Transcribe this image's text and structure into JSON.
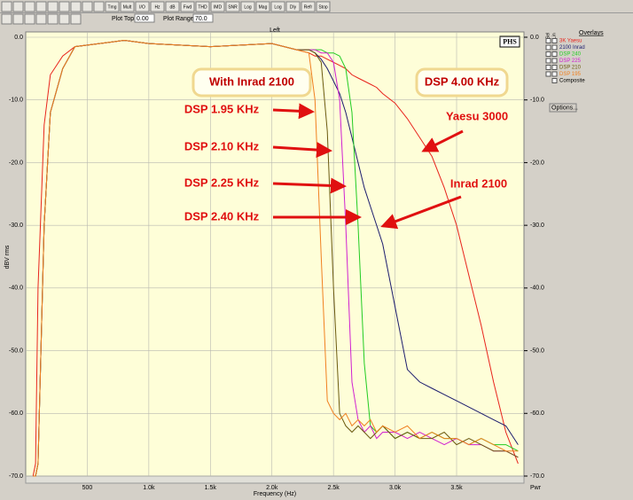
{
  "ui": {
    "toolbar": [
      "Tmg",
      "Mult",
      "I/O",
      "Hz",
      "dB",
      "Fwd",
      "THD",
      "IMD",
      "SNR",
      "Log",
      "Mag",
      "Log",
      "Dly",
      "Refr",
      "Stop"
    ],
    "plot_top_label": "Plot Top:",
    "plot_top_value": "0.00",
    "plot_range_label": "Plot Range:",
    "plot_range_value": "70.0",
    "logo": "PHS",
    "right_corner": "Pwr",
    "overlays_title": "Overlays",
    "overlays_header": [
      "Sel",
      "Lin"
    ],
    "composite": "Composite",
    "options": "Options..."
  },
  "chart_data": {
    "type": "line",
    "title": "Left",
    "x_label": "Frequency (Hz)",
    "y_label": "dBV rms",
    "x": [
      60,
      80,
      100,
      150,
      200,
      300,
      400,
      600,
      800,
      1000,
      1500,
      2000,
      2200,
      2300,
      2350,
      2400,
      2450,
      2500,
      2550,
      2600,
      2650,
      2700,
      2750,
      2800,
      2850,
      2900,
      3000,
      3100,
      3200,
      3300,
      3400,
      3500,
      3600,
      3700,
      3800,
      3900,
      4000
    ],
    "xlim": [
      0,
      4040
    ],
    "xticks": [
      500,
      {
        "value": 1000,
        "label": "1.0k"
      },
      {
        "value": 1500,
        "label": "1.5k"
      },
      {
        "value": 2000,
        "label": "2.0k"
      },
      {
        "value": 2500,
        "label": "2.5k"
      },
      {
        "value": 3000,
        "label": "3.0k"
      },
      {
        "value": 3500,
        "label": "3.5k"
      }
    ],
    "ylim": [
      -70,
      0
    ],
    "yticks": [
      {
        "value": 0,
        "label": "0.0"
      },
      {
        "value": -10,
        "label": "-10.0"
      },
      {
        "value": -20,
        "label": "-20.0"
      },
      {
        "value": -30,
        "label": "-30.0"
      },
      {
        "value": -40,
        "label": "-40.0"
      },
      {
        "value": -50,
        "label": "-50.0"
      },
      {
        "value": -60,
        "label": "-60.0"
      },
      {
        "value": -70,
        "label": "-70.0"
      }
    ],
    "grid": true,
    "series": [
      {
        "name": "3K Yaesu",
        "color": "#e8241c",
        "values": [
          -70,
          -68,
          -40,
          -14,
          -6,
          -3,
          -1.5,
          -1,
          -0.5,
          -1,
          -1.5,
          -1,
          -2,
          -2.5,
          -3,
          -3,
          -3.5,
          -4,
          -4.5,
          -5,
          -6,
          -6.5,
          -7,
          -7.5,
          -8,
          -9,
          -10.5,
          -13,
          -16,
          -19,
          -24,
          -30,
          -38,
          -46,
          -55,
          -63,
          -68
        ]
      },
      {
        "name": "2100 Inrad",
        "color": "#1c1c6e",
        "values": [
          -70,
          -70,
          -68,
          -30,
          -12,
          -5,
          -1.5,
          -1,
          -0.5,
          -1,
          -1.5,
          -1,
          -2,
          -2,
          -2.5,
          -3.5,
          -5,
          -7,
          -9,
          -12,
          -16,
          -20,
          -24,
          -27,
          -30,
          -33,
          -43,
          -53,
          -55,
          -56,
          -57,
          -58,
          -59,
          -60,
          -61,
          -62,
          -65
        ]
      },
      {
        "name": "DSP 240",
        "color": "#22cc22",
        "values": [
          -70,
          -70,
          -68,
          -30,
          -12,
          -5,
          -1.5,
          -1,
          -0.5,
          -1,
          -1.5,
          -1,
          -2,
          -2,
          -2,
          -2,
          -2.5,
          -2.5,
          -3,
          -5,
          -12,
          -30,
          -52,
          -62,
          -63,
          -62,
          -64,
          -63,
          -64,
          -63,
          -64,
          -64,
          -65,
          -64,
          -65,
          -65,
          -66
        ]
      },
      {
        "name": "DSP 225",
        "color": "#d020d0",
        "values": [
          -70,
          -70,
          -68,
          -30,
          -12,
          -5,
          -1.5,
          -1,
          -0.5,
          -1,
          -1.5,
          -1,
          -2,
          -2,
          -2,
          -2.5,
          -2.5,
          -4,
          -10,
          -30,
          -55,
          -61,
          -63,
          -62,
          -64,
          -63,
          -63,
          -64,
          -63,
          -64,
          -65,
          -64,
          -65,
          -65,
          -66,
          -66,
          -67
        ]
      },
      {
        "name": "DSP 210",
        "color": "#6b5a10",
        "values": [
          -70,
          -70,
          -68,
          -30,
          -12,
          -5,
          -1.5,
          -1,
          -0.5,
          -1,
          -1.5,
          -1,
          -2,
          -2,
          -2.5,
          -4,
          -15,
          -40,
          -60,
          -62,
          -63,
          -62,
          -63,
          -64,
          -63,
          -62,
          -64,
          -63,
          -64,
          -64,
          -63,
          -65,
          -64,
          -65,
          -66,
          -66,
          -67
        ]
      },
      {
        "name": "DSP 195",
        "color": "#f08020",
        "values": [
          -70,
          -70,
          -68,
          -30,
          -12,
          -5,
          -1.5,
          -1,
          -0.5,
          -1,
          -1.5,
          -1,
          -2,
          -2.5,
          -10,
          -35,
          -58,
          -60,
          -61,
          -60,
          -62,
          -61,
          -62,
          -61,
          -63,
          -62,
          -63,
          -62,
          -64,
          -63,
          -64,
          -64,
          -65,
          -64,
          -65,
          -66,
          -66
        ]
      }
    ],
    "annotations": [
      "With Inrad 2100",
      "DSP 4.00 KHz",
      "DSP 1.95 KHz",
      "DSP 2.10 KHz",
      "DSP 2.25 KHz",
      "DSP 2.40 KHz",
      "Yaesu 3000",
      "Inrad 2100"
    ]
  }
}
